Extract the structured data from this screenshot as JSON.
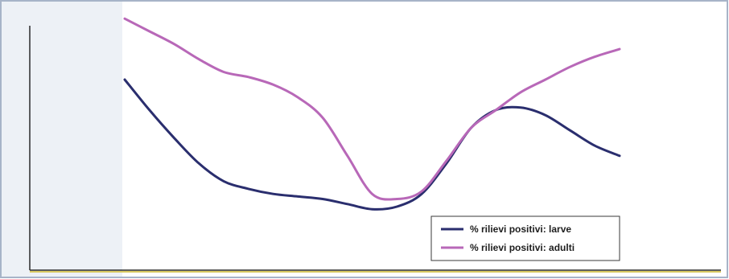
{
  "chart_data": {
    "type": "line",
    "title": "",
    "xlabel": "",
    "ylabel": "",
    "x": [
      0,
      1,
      2,
      3,
      4,
      5,
      6,
      7,
      8,
      9,
      10,
      11,
      12,
      13,
      14,
      15,
      16,
      17,
      18,
      19,
      20
    ],
    "ylim": [
      0,
      100
    ],
    "grid": false,
    "legend_position": "bottom-right",
    "series": [
      {
        "name": "% rilievi positivi: larve",
        "color": "#2a2e6e",
        "values": [
          75,
          63,
          52,
          42,
          35,
          32,
          30,
          29,
          28,
          26,
          24,
          25,
          30,
          42,
          56,
          63,
          64,
          61,
          55,
          49,
          45
        ]
      },
      {
        "name": "% rilievi positivi: adulti",
        "color": "#b868b8",
        "values": [
          99,
          94,
          89,
          83,
          78,
          76,
          73,
          68,
          60,
          45,
          30,
          28,
          31,
          43,
          56,
          63,
          70,
          75,
          80,
          84,
          87
        ]
      }
    ]
  },
  "colors": {
    "axis": "#2b2b2b",
    "baseline_accent": "#d8c860",
    "frame": "#a7b4c8",
    "panel_fill": "#edf1f6"
  }
}
